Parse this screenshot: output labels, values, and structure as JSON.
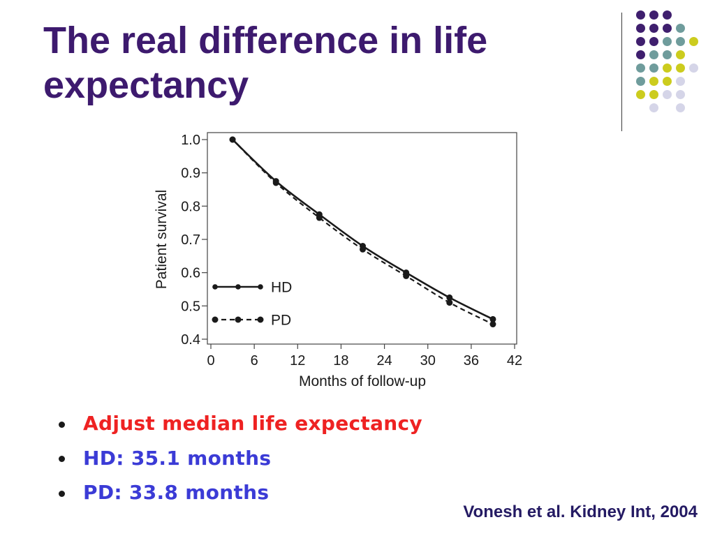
{
  "slide": {
    "title": "The real difference in life expectancy",
    "bullets": [
      {
        "text": "Adjust median life expectancy",
        "color": "#ee2222"
      },
      {
        "text": "HD: 35.1 months",
        "color": "#3b3bd6"
      },
      {
        "text": "PD: 33.8 months",
        "color": "#3b3bd6"
      }
    ],
    "citation": "Vonesh et al. Kidney Int, 2004"
  },
  "colors": {
    "title": "#3d1a6e",
    "citation": "#241a63",
    "bullet_marker": "#1a1a1a",
    "divider": "#3a3a3a",
    "decor_purple": "#3f1f6e",
    "decor_teal": "#6f9c9c",
    "decor_yellow": "#cccc1e",
    "decor_lavender": "#d5d5e8",
    "chart_ink": "#1a1a1a"
  },
  "chart_data": {
    "type": "line",
    "xlabel": "Months of follow-up",
    "ylabel": "Patient survival",
    "xlim": [
      0,
      42
    ],
    "ylim": [
      0.4,
      1.0
    ],
    "x_ticks": [
      "0",
      "6",
      "12",
      "18",
      "24",
      "30",
      "36",
      "42"
    ],
    "y_ticks": [
      "0.4",
      "0.5",
      "0.6",
      "0.7",
      "0.8",
      "0.9",
      "1.0"
    ],
    "x": [
      3,
      9,
      15,
      21,
      27,
      33,
      39
    ],
    "series": [
      {
        "name": "HD",
        "line_style": "solid",
        "values": [
          1.0,
          0.875,
          0.775,
          0.68,
          0.6,
          0.525,
          0.46
        ]
      },
      {
        "name": "PD",
        "line_style": "dashed",
        "values": [
          1.0,
          0.87,
          0.765,
          0.67,
          0.59,
          0.51,
          0.445
        ]
      }
    ],
    "legend": "bottom-left",
    "grid": false
  }
}
